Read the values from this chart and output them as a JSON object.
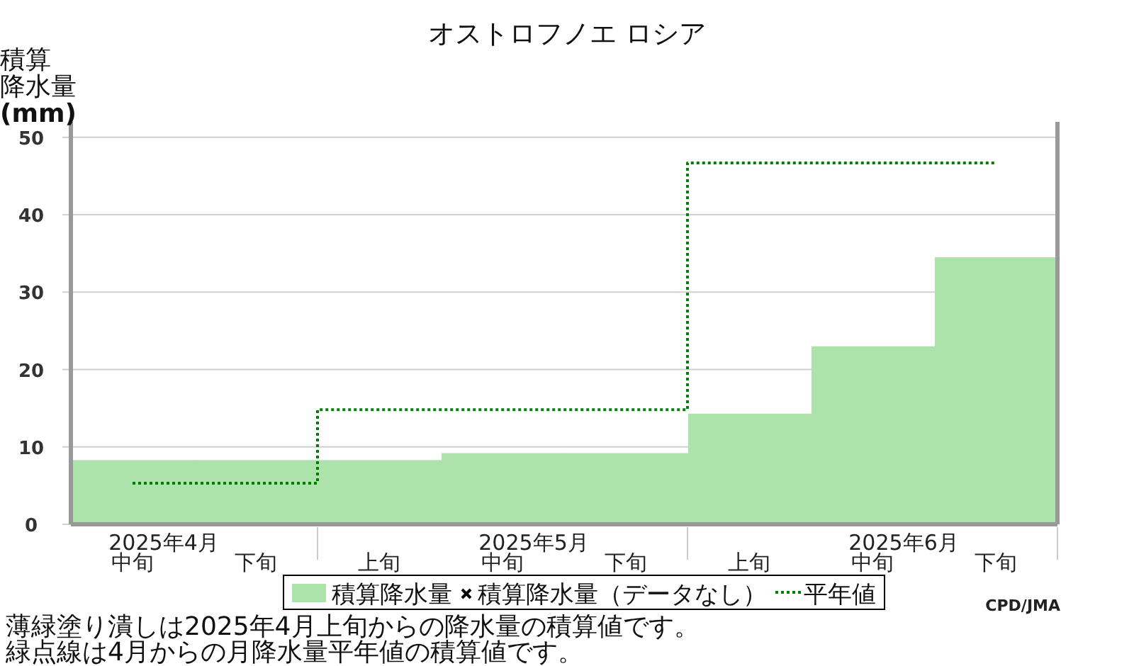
{
  "chart_data": {
    "type": "bar",
    "title": "オストロフノエ ロシア",
    "ylabel": "積算降水量(mm)",
    "categories": [
      "中旬",
      "下旬",
      "上旬",
      "中旬",
      "下旬",
      "上旬",
      "中旬",
      "下旬"
    ],
    "series": [
      {
        "name": "積算降水量",
        "color": "#abe3aa",
        "values": [
          8.3,
          8.3,
          8.3,
          9.2,
          9.2,
          14.3,
          23.0,
          34.5
        ]
      },
      {
        "name": "積算降水量（データなし）",
        "type": "scatter",
        "marker": "cross",
        "color": "#000000",
        "values": [
          null,
          null,
          null,
          null,
          null,
          null,
          null,
          null
        ]
      },
      {
        "name": "平年値",
        "type": "step",
        "line_style": "dotted",
        "color": "#008000",
        "values": [
          5.3,
          5.3,
          14.8,
          14.8,
          14.8,
          46.7,
          46.7,
          46.7
        ]
      }
    ],
    "ylim": [
      0,
      52
    ],
    "yticks": [
      0,
      10,
      20,
      30,
      40,
      50
    ],
    "grid": "y",
    "legend": "bottom",
    "annotations": [
      "2025年4月",
      "2025年5月",
      "2025年6月",
      "CPD/JMA",
      "薄緑塗り潰しは2025年4月上旬からの降水量の積算値です。",
      "緑点線は4月からの月降水量平年値の積算値です。"
    ]
  }
}
